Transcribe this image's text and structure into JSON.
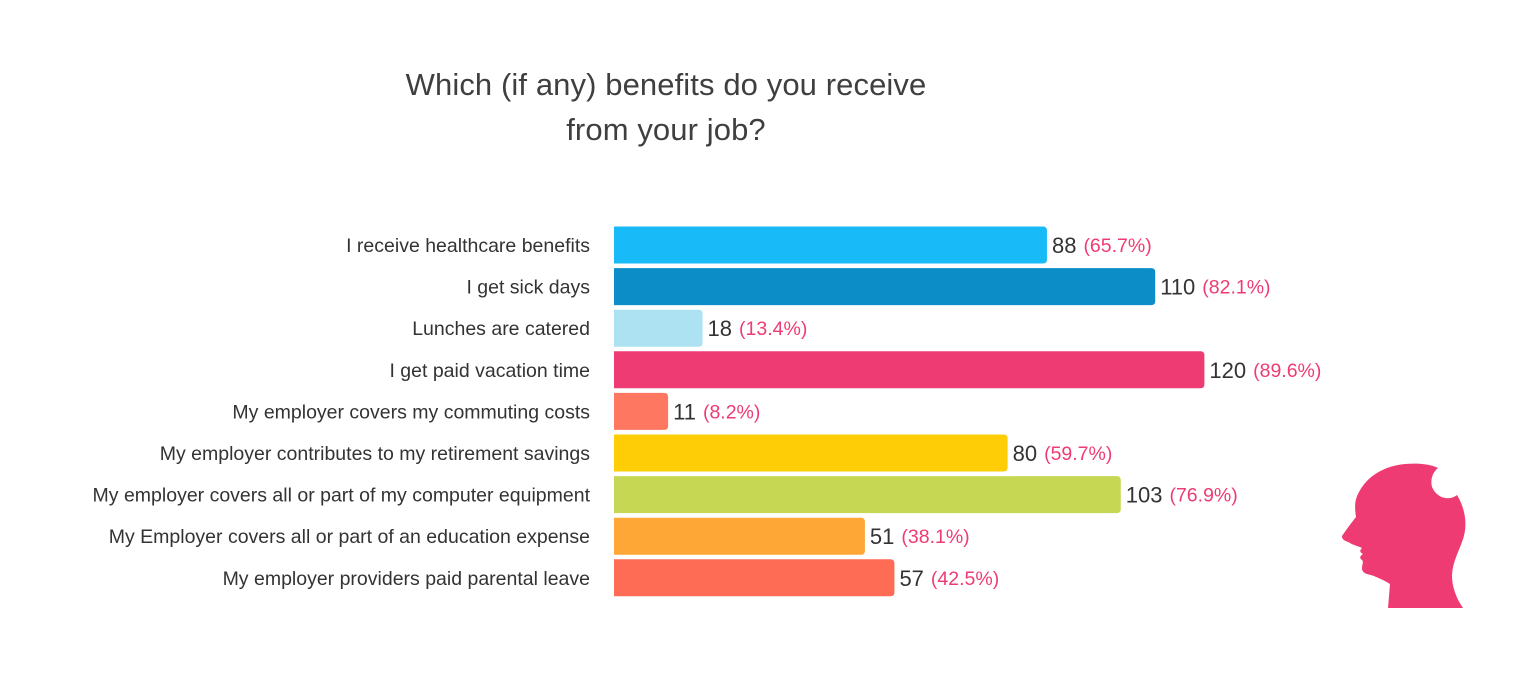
{
  "chart_data": {
    "type": "bar",
    "orientation": "horizontal",
    "title_lines": [
      "Which (if any) benefits do you receive",
      "from your job?"
    ],
    "categories": [
      "I receive healthcare benefits",
      "I get sick days",
      "Lunches are catered",
      "I get paid vacation time",
      "My employer covers my commuting costs",
      "My employer contributes to my retirement savings",
      "My employer covers all or part of my computer equipment",
      "My Employer covers all or part of an education expense",
      "My employer providers paid parental leave"
    ],
    "values": [
      88,
      110,
      18,
      120,
      11,
      80,
      103,
      51,
      57
    ],
    "percent_labels": [
      "(65.7%)",
      "(82.1%)",
      "(13.4%)",
      "(89.6%)",
      "(8.2%)",
      "(59.7%)",
      "(76.9%)",
      "(38.1%)",
      "(42.5%)"
    ],
    "bar_colors": [
      "#18bbf8",
      "#0c8dc7",
      "#ace2f1",
      "#ef3b73",
      "#fe7760",
      "#fecd06",
      "#c6d853",
      "#fea736",
      "#fe6c56"
    ],
    "percent_color": "#ef3b73",
    "xlim": [
      0,
      130
    ],
    "grid": false,
    "legend": "none"
  },
  "icons": {
    "decoration": "head-silhouette-icon",
    "decoration_color": "#ef3b73"
  }
}
